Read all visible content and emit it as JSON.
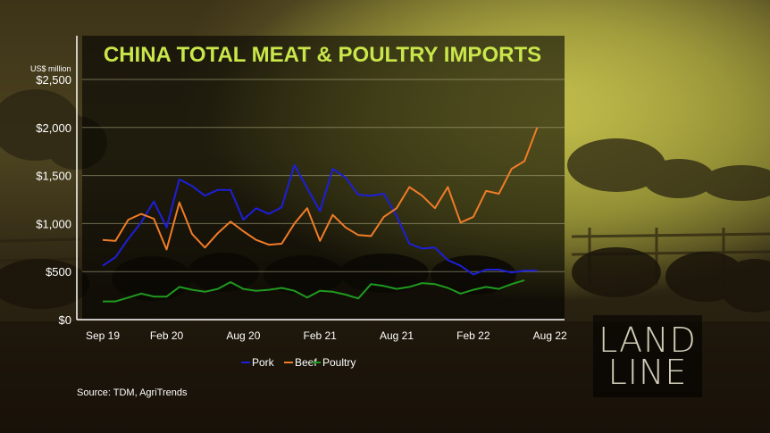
{
  "chart_data": {
    "type": "line",
    "title": "CHINA TOTAL MEAT & POULTRY IMPORTS",
    "unit_label": "US$ million",
    "y_ticks": [
      "$2,500",
      "$2,000",
      "$1,500",
      "$1,000",
      "$500",
      "$0"
    ],
    "y_tick_values": [
      2500,
      2000,
      1500,
      1000,
      500,
      0
    ],
    "ylim": [
      0,
      2500
    ],
    "x_tick_labels": [
      "Sep 19",
      "Feb 20",
      "Aug 20",
      "Feb 21",
      "Aug 21",
      "Feb 22",
      "Aug 22"
    ],
    "x_tick_index": [
      0,
      5,
      11,
      17,
      23,
      29,
      35
    ],
    "x_months": [
      "Sep 19",
      "Oct 19",
      "Nov 19",
      "Dec 19",
      "Jan 20",
      "Feb 20",
      "Mar 20",
      "Apr 20",
      "May 20",
      "Jun 20",
      "Jul 20",
      "Aug 20",
      "Sep 20",
      "Oct 20",
      "Nov 20",
      "Dec 20",
      "Jan 21",
      "Feb 21",
      "Mar 21",
      "Apr 21",
      "May 21",
      "Jun 21",
      "Jul 21",
      "Aug 21",
      "Sep 21",
      "Oct 21",
      "Nov 21",
      "Dec 21",
      "Jan 22",
      "Feb 22",
      "Mar 22",
      "Apr 22",
      "May 22",
      "Jun 22",
      "Jul 22",
      "Aug 22",
      "Sep 22"
    ],
    "grid": true,
    "legend_position": "bottom",
    "series": [
      {
        "name": "Pork",
        "color": "#1c1fd8",
        "values": [
          560,
          650,
          840,
          1010,
          1230,
          960,
          1460,
          1390,
          1290,
          1350,
          1350,
          1040,
          1160,
          1100,
          1170,
          1610,
          1370,
          1130,
          1570,
          1480,
          1300,
          1290,
          1310,
          1080,
          790,
          740,
          750,
          620,
          560,
          470,
          520,
          520,
          490,
          510,
          510,
          null,
          null
        ]
      },
      {
        "name": "Beef",
        "color": "#f07c28",
        "values": [
          830,
          820,
          1040,
          1100,
          1050,
          730,
          1220,
          890,
          750,
          900,
          1020,
          920,
          830,
          780,
          790,
          1000,
          1160,
          820,
          1090,
          960,
          880,
          870,
          1070,
          1160,
          1380,
          1290,
          1160,
          1380,
          1010,
          1070,
          1340,
          1310,
          1570,
          1650,
          2000,
          null,
          null
        ]
      },
      {
        "name": "Poultry",
        "color": "#1f9a1f",
        "values": [
          190,
          190,
          230,
          270,
          240,
          240,
          340,
          310,
          290,
          320,
          390,
          320,
          300,
          310,
          330,
          300,
          230,
          300,
          290,
          260,
          220,
          370,
          350,
          320,
          340,
          380,
          370,
          330,
          270,
          310,
          340,
          320,
          370,
          410,
          null,
          null,
          null
        ]
      }
    ],
    "source": "Source: TDM, AgriTrends"
  },
  "logo": {
    "line1": "LAND",
    "line2": "LINE"
  }
}
